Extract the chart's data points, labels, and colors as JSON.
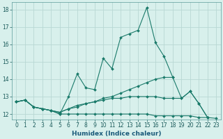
{
  "xlabel": "Humidex (Indice chaleur)",
  "xlim": [
    -0.5,
    23.5
  ],
  "ylim": [
    11.7,
    18.4
  ],
  "yticks": [
    12,
    13,
    14,
    15,
    16,
    17,
    18
  ],
  "xticks": [
    0,
    1,
    2,
    3,
    4,
    5,
    6,
    7,
    8,
    9,
    10,
    11,
    12,
    13,
    14,
    15,
    16,
    17,
    18,
    19,
    20,
    21,
    22,
    23
  ],
  "bg_color": "#d8f0ec",
  "grid_color": "#b8d8d4",
  "line_color": "#1a7a6a",
  "lines": [
    {
      "x": [
        0,
        1,
        2,
        3,
        4,
        5,
        6,
        7,
        8,
        9,
        10,
        11,
        12,
        13,
        14,
        15,
        16,
        17,
        18,
        19,
        20,
        21,
        22
      ],
      "y": [
        12.7,
        12.8,
        12.4,
        12.3,
        12.2,
        12.0,
        13.0,
        14.3,
        13.5,
        13.4,
        15.2,
        14.6,
        16.4,
        16.6,
        16.8,
        18.1,
        16.1,
        15.3,
        14.1,
        12.9,
        13.3,
        12.6,
        11.8
      ]
    },
    {
      "x": [
        0,
        1,
        2,
        3,
        4,
        5,
        6,
        7,
        8,
        9,
        10,
        11,
        12,
        13,
        14,
        15,
        16,
        17,
        18
      ],
      "y": [
        12.7,
        12.8,
        12.4,
        12.3,
        12.2,
        12.1,
        12.3,
        12.4,
        12.6,
        12.7,
        12.9,
        13.0,
        13.2,
        13.4,
        13.6,
        13.8,
        14.0,
        14.1,
        14.1
      ]
    },
    {
      "x": [
        0,
        1,
        2,
        3,
        4,
        5,
        6,
        7,
        8,
        9,
        10,
        11,
        12,
        13,
        14,
        15,
        16,
        17,
        18,
        19,
        20,
        21,
        22,
        23
      ],
      "y": [
        12.7,
        12.8,
        12.4,
        12.3,
        12.2,
        12.0,
        12.0,
        12.0,
        12.0,
        12.0,
        12.0,
        12.0,
        12.0,
        12.0,
        12.0,
        12.0,
        11.9,
        11.9,
        11.9,
        11.9,
        11.9,
        11.8,
        11.8,
        11.75
      ]
    },
    {
      "x": [
        0,
        1,
        2,
        3,
        4,
        5,
        6,
        7,
        8,
        9,
        10,
        11,
        12,
        13,
        14,
        15,
        16,
        17,
        18,
        19,
        20,
        21,
        22,
        23
      ],
      "y": [
        12.7,
        12.8,
        12.4,
        12.3,
        12.2,
        12.1,
        12.3,
        12.5,
        12.6,
        12.7,
        12.8,
        12.9,
        12.9,
        13.0,
        13.0,
        13.0,
        13.0,
        12.9,
        12.9,
        12.9,
        13.3,
        12.6,
        11.8,
        null
      ]
    }
  ]
}
